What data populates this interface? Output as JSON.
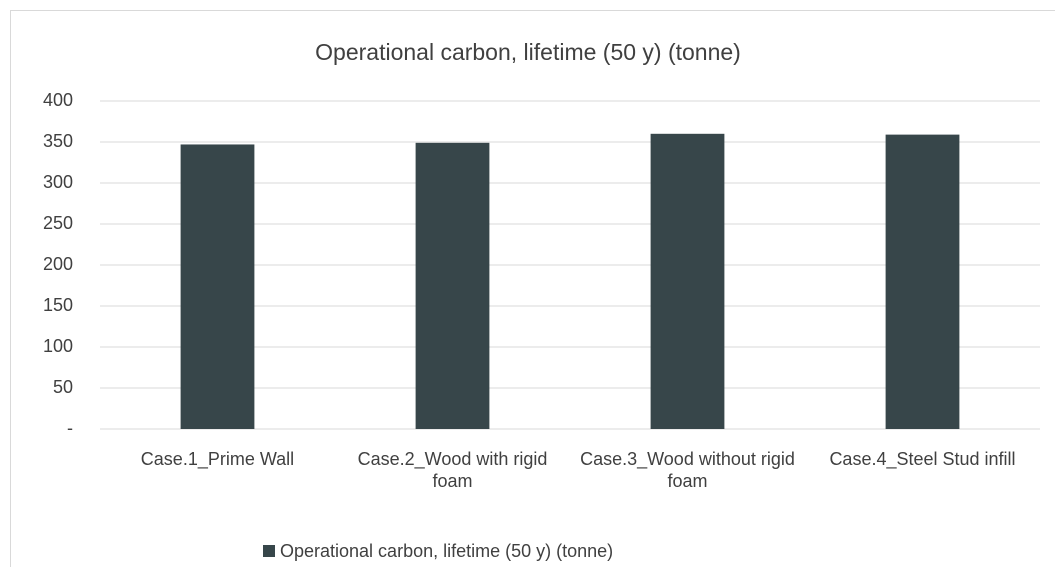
{
  "chart_data": {
    "type": "bar",
    "title": "Operational carbon, lifetime (50 y) (tonne)",
    "categories": [
      "Case.1_Prime Wall",
      "Case.2_Wood with rigid foam",
      "Case.3_Wood without rigid foam",
      "Case.4_Steel Stud infill"
    ],
    "series": [
      {
        "name": "Operational carbon, lifetime (50 y) (tonne)",
        "color": "#37464a",
        "values": [
          347,
          349,
          360,
          359
        ]
      }
    ],
    "ylim": [
      0,
      400
    ],
    "yticks": [
      {
        "value": 0,
        "label": "-"
      },
      50,
      100,
      150,
      200,
      250,
      300,
      350,
      400
    ],
    "grid": true,
    "legend": "bottom"
  }
}
